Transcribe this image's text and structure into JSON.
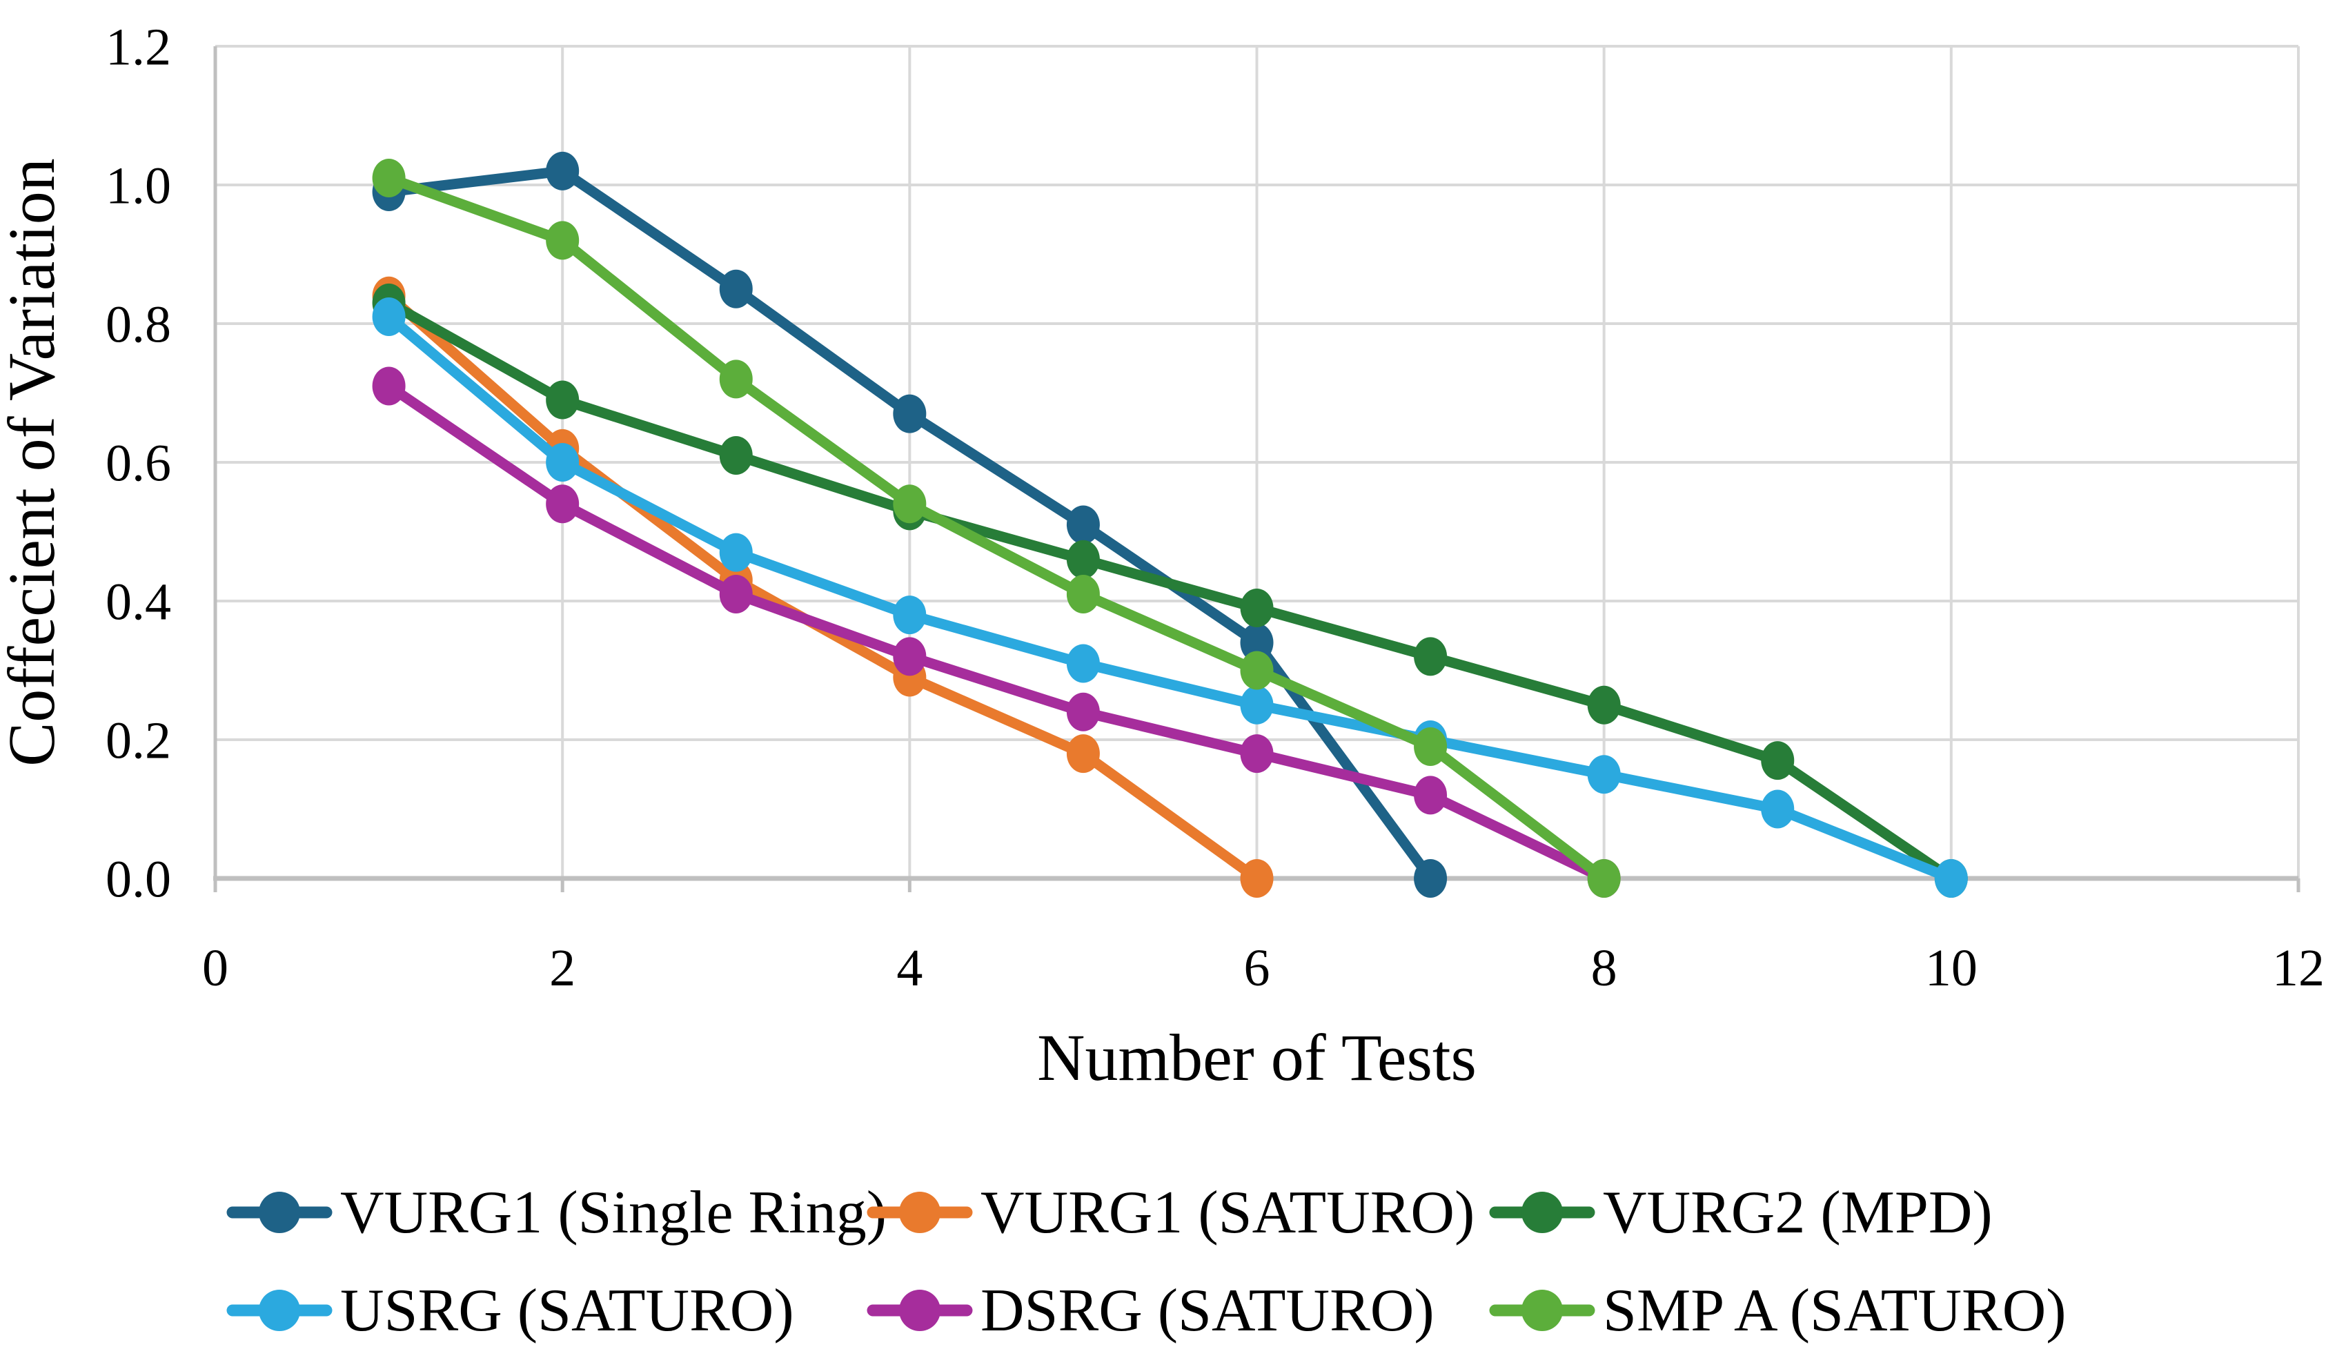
{
  "chart_data": {
    "type": "line",
    "title": "",
    "xlabel": "Number of Tests",
    "ylabel": "Coffecient of Variation",
    "xlim": [
      0,
      12
    ],
    "ylim": [
      0.0,
      1.2
    ],
    "x_ticks": [
      0,
      2,
      4,
      6,
      8,
      10,
      12
    ],
    "x_tick_labels": [
      "0",
      "2",
      "4",
      "6",
      "8",
      "10",
      "12"
    ],
    "y_ticks": [
      0.0,
      0.2,
      0.4,
      0.6,
      0.8,
      1.0,
      1.2
    ],
    "y_tick_labels": [
      "0.0",
      "0.2",
      "0.4",
      "0.6",
      "0.8",
      "1.0",
      "1.2"
    ],
    "grid": true,
    "legend_position": "bottom",
    "colors": {
      "background": "#FFFFFF",
      "gridline": "#D9D9D9",
      "axis": "#BFBFBF",
      "text": "#000000"
    },
    "series": [
      {
        "name": "VURG1 (Single Ring)",
        "color": "#1E6287",
        "x": [
          1,
          2,
          3,
          4,
          5,
          6,
          7
        ],
        "y": [
          0.99,
          1.02,
          0.85,
          0.67,
          0.51,
          0.34,
          0.0
        ]
      },
      {
        "name": "VURG1 (SATURO)",
        "color": "#E97A2D",
        "x": [
          1,
          2,
          3,
          4,
          5,
          6
        ],
        "y": [
          0.84,
          0.62,
          0.43,
          0.29,
          0.18,
          0.0
        ]
      },
      {
        "name": "VURG2 (MPD)",
        "color": "#277D38",
        "x": [
          1,
          2,
          3,
          4,
          5,
          6,
          7,
          8,
          9,
          10
        ],
        "y": [
          0.83,
          0.69,
          0.61,
          0.53,
          0.46,
          0.39,
          0.32,
          0.25,
          0.17,
          0.0
        ]
      },
      {
        "name": "USRG (SATURO)",
        "color": "#2BA9DF",
        "x": [
          1,
          2,
          3,
          4,
          5,
          6,
          7,
          8,
          9,
          10
        ],
        "y": [
          0.81,
          0.6,
          0.47,
          0.38,
          0.31,
          0.25,
          0.2,
          0.15,
          0.1,
          0.0
        ]
      },
      {
        "name": "DSRG (SATURO)",
        "color": "#A62D9C",
        "x": [
          1,
          2,
          3,
          4,
          5,
          6,
          7,
          8
        ],
        "y": [
          0.71,
          0.54,
          0.41,
          0.32,
          0.24,
          0.18,
          0.12,
          0.0
        ]
      },
      {
        "name": "SMP A (SATURO)",
        "color": "#5CAE3B",
        "x": [
          1,
          2,
          3,
          4,
          5,
          6,
          7,
          8
        ],
        "y": [
          1.01,
          0.92,
          0.72,
          0.54,
          0.41,
          0.3,
          0.19,
          0.0
        ]
      }
    ],
    "legend_rows": [
      [
        0,
        1,
        2
      ],
      [
        3,
        4,
        5
      ]
    ]
  }
}
